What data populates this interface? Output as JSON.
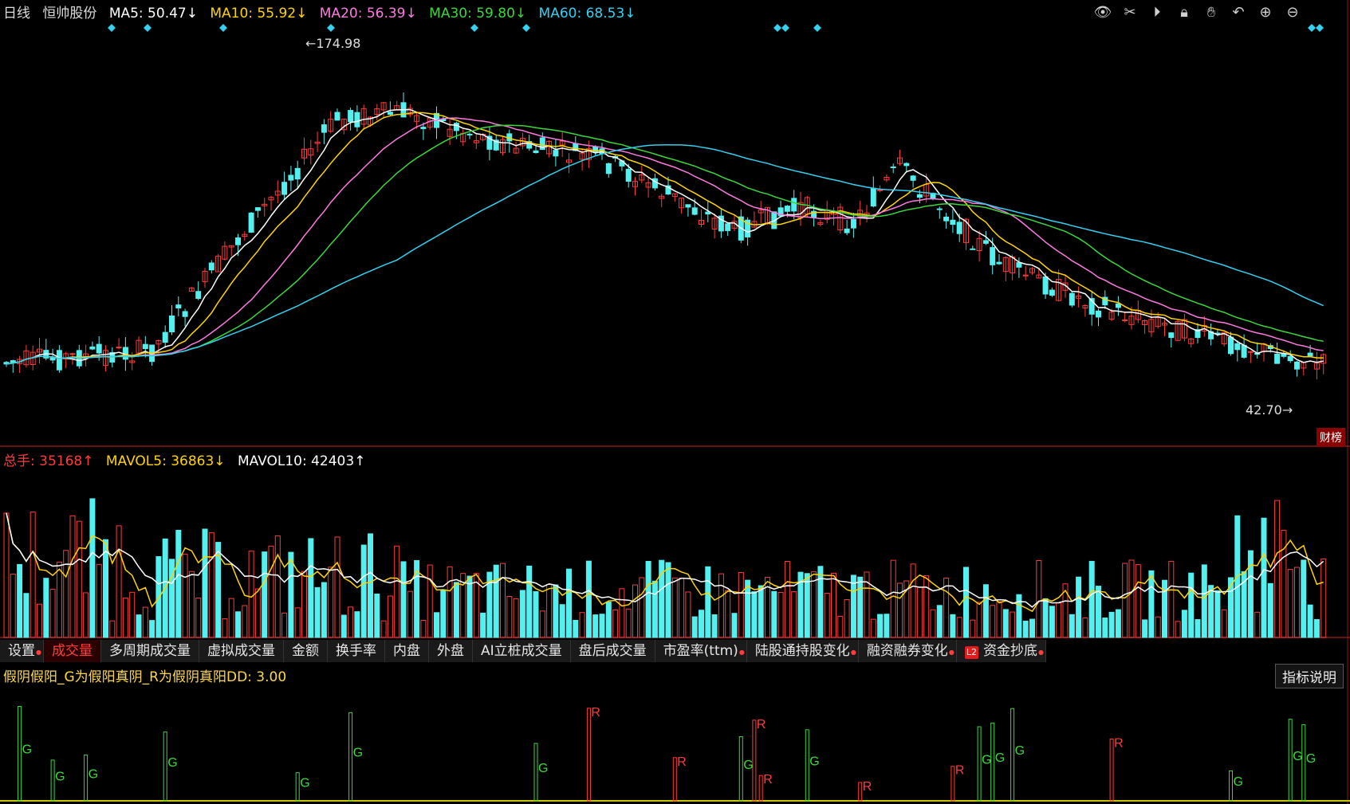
{
  "header": {
    "period": "日线",
    "stock_name": "恒帅股份",
    "ma": [
      {
        "label": "MA5: 50.47↓",
        "color": "#ffffff"
      },
      {
        "label": "MA10: 55.92↓",
        "color": "#ffd400"
      },
      {
        "label": "MA20: 56.39↓",
        "color": "#ff7ae0"
      },
      {
        "label": "MA30: 59.80↓",
        "color": "#3bd83b"
      },
      {
        "label": "MA60: 68.53↓",
        "color": "#36d0f0"
      }
    ]
  },
  "annotations": {
    "high": "174.98",
    "low": "42.70"
  },
  "volume_header": {
    "total": "总手: 35168↑",
    "mavol5": "MAVOL5: 36863↓",
    "mavol10": "MAVOL10: 42403↑"
  },
  "tabs": [
    {
      "label": "设置",
      "dot": true
    },
    {
      "label": "成交量",
      "active": true
    },
    {
      "label": "多周期成交量"
    },
    {
      "label": "虚拟成交量"
    },
    {
      "label": "金额"
    },
    {
      "label": "换手率"
    },
    {
      "label": "内盘"
    },
    {
      "label": "外盘"
    },
    {
      "label": "AI立桩成交量"
    },
    {
      "label": "盘后成交量"
    },
    {
      "label": "市盈率(ttm)",
      "dot": true
    },
    {
      "label": "陆股通持股变化",
      "dot": true
    },
    {
      "label": "融资融券变化",
      "dot": true
    },
    {
      "label": "资金抄底",
      "dot": true,
      "l2": true
    }
  ],
  "indicator": {
    "title": "假阴假阳_G为假阳真阴_R为假阴真阳DD: 3.00",
    "explain_button": "指标说明"
  },
  "side_button": "财榜",
  "toolbar_icons": [
    "eye-icon",
    "scissors-icon",
    "play-icon",
    "lock-icon",
    "hand-icon",
    "undo-icon",
    "zoom-in-icon",
    "zoom-out-icon"
  ],
  "colors": {
    "up": "#ff3b3b",
    "down": "#54f0f0",
    "bg": "#000000"
  }
}
